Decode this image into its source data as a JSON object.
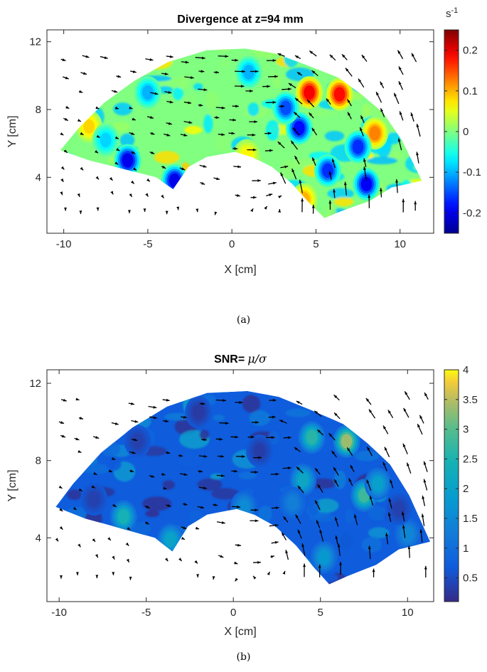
{
  "captions": [
    "(a)",
    "(b)"
  ],
  "chart_data": [
    {
      "type": "heatmap",
      "title": "Divergence at z=94 mm",
      "xlabel": "X [cm]",
      "ylabel": "Y [cm]",
      "xlim": [
        -11,
        12
      ],
      "ylim": [
        0.7,
        12.7
      ],
      "xticks": [
        -10,
        -5,
        0,
        5,
        10
      ],
      "yticks": [
        4,
        8,
        12
      ],
      "grid": false,
      "colorbar": {
        "unit": "s",
        "unit_exponent": "-1",
        "range": [
          -0.25,
          0.25
        ],
        "ticks": [
          0.2,
          0.1,
          0,
          -0.1,
          -0.2
        ],
        "tick_labels": [
          "0.2",
          "0.1",
          "0",
          "-0.1",
          "-0.2"
        ],
        "colormap": "jet"
      },
      "background_value": 0.0,
      "hotspots": [
        {
          "x": 4.6,
          "y": 9.0,
          "value": 0.23
        },
        {
          "x": 6.4,
          "y": 8.9,
          "value": 0.22
        },
        {
          "x": 8.5,
          "y": 6.6,
          "value": 0.15
        },
        {
          "x": 4.3,
          "y": 2.7,
          "value": 0.12
        },
        {
          "x": 0.9,
          "y": 5.3,
          "value": 0.08
        },
        {
          "x": -8.5,
          "y": 7.0,
          "value": 0.1
        },
        {
          "x": -6.2,
          "y": 5.0,
          "value": -0.24
        },
        {
          "x": -3.4,
          "y": 3.8,
          "value": -0.24
        },
        {
          "x": 4.0,
          "y": 6.9,
          "value": -0.22
        },
        {
          "x": 7.5,
          "y": 5.8,
          "value": -0.2
        },
        {
          "x": 8.0,
          "y": 3.6,
          "value": -0.23
        },
        {
          "x": 5.7,
          "y": 4.4,
          "value": -0.2
        },
        {
          "x": 3.2,
          "y": 8.1,
          "value": -0.18
        },
        {
          "x": -5.0,
          "y": 9.0,
          "value": -0.12
        },
        {
          "x": 1.0,
          "y": 10.2,
          "value": -0.12
        },
        {
          "x": -7.5,
          "y": 6.2,
          "value": -0.1
        }
      ],
      "vector_field": "black quiver arrows"
    },
    {
      "type": "heatmap",
      "title": "SNR=",
      "title_formula": "μ/σ",
      "xlabel": "X [cm]",
      "ylabel": "Y [cm]",
      "xlim": [
        -10.7,
        11.5
      ],
      "ylim": [
        0.7,
        12.7
      ],
      "xticks": [
        -10,
        -5,
        0,
        5,
        10
      ],
      "yticks": [
        4,
        8,
        12
      ],
      "grid": false,
      "colorbar": {
        "range": [
          0.1,
          4.0
        ],
        "ticks": [
          4,
          3.5,
          3,
          2.5,
          2,
          1.5,
          1,
          0.5
        ],
        "tick_labels": [
          "4",
          "3.5",
          "3",
          "2.5",
          "2",
          "1.5",
          "1",
          "0.5"
        ],
        "colormap": "parula"
      },
      "background_value": 0.7,
      "hotspots": [
        {
          "x": 6.5,
          "y": 9.0,
          "value": 3.9
        },
        {
          "x": 4.5,
          "y": 9.2,
          "value": 3.0
        },
        {
          "x": 7.5,
          "y": 6.2,
          "value": 3.2
        },
        {
          "x": -6.3,
          "y": 5.1,
          "value": 2.8
        },
        {
          "x": 4.0,
          "y": 7.0,
          "value": 2.4
        },
        {
          "x": 8.3,
          "y": 6.8,
          "value": 2.2
        },
        {
          "x": 5.2,
          "y": 3.0,
          "value": 2.0
        },
        {
          "x": -3.6,
          "y": 3.9,
          "value": 2.3
        },
        {
          "x": 0.6,
          "y": 5.6,
          "value": 1.7
        },
        {
          "x": 10.0,
          "y": 4.2,
          "value": 1.6
        },
        {
          "x": 3.4,
          "y": 5.8,
          "value": 1.4
        },
        {
          "x": -2.0,
          "y": 10.5,
          "value": 0.2
        },
        {
          "x": 1.5,
          "y": 8.5,
          "value": 0.25
        },
        {
          "x": -5.5,
          "y": 9.0,
          "value": 0.3
        },
        {
          "x": -8.0,
          "y": 6.0,
          "value": 0.3
        },
        {
          "x": 9.5,
          "y": 5.5,
          "value": 0.3
        }
      ],
      "vector_field": "black quiver arrows"
    }
  ]
}
